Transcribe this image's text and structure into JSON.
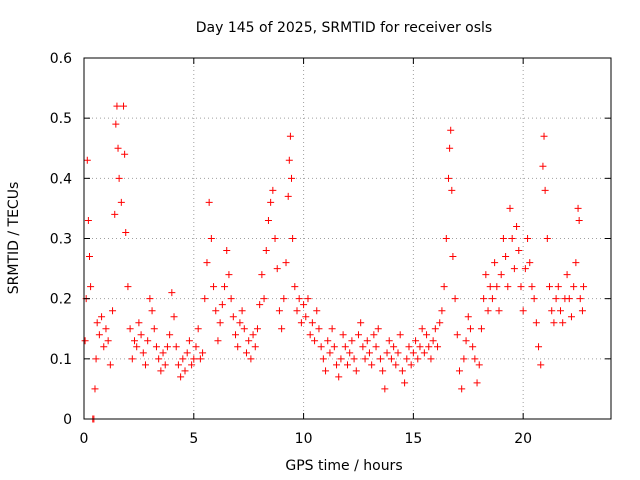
{
  "chart_data": {
    "type": "scatter",
    "title": "Day 145 of 2025, SRMTID for receiver osls",
    "xlabel": "GPS time / hours",
    "ylabel": "SRMTID / TECUs",
    "xlim": [
      0,
      24
    ],
    "ylim": [
      0,
      0.6
    ],
    "xticks": [
      0,
      5,
      10,
      15,
      20
    ],
    "xtick_labels": [
      "0",
      "5",
      "10",
      "15",
      "20"
    ],
    "yticks": [
      0,
      0.1,
      0.2,
      0.3,
      0.4,
      0.5,
      0.6
    ],
    "ytick_labels": [
      "0",
      "0.1",
      "0.2",
      "0.3",
      "0.4",
      "0.5",
      "0.6"
    ],
    "grid": true,
    "marker": "+",
    "color": "#ff0000",
    "series": [
      {
        "name": "osls",
        "points": [
          [
            0.05,
            0.13
          ],
          [
            0.1,
            0.2
          ],
          [
            0.15,
            0.43
          ],
          [
            0.2,
            0.33
          ],
          [
            0.25,
            0.27
          ],
          [
            0.3,
            0.22
          ],
          [
            0.4,
            0.0
          ],
          [
            0.45,
            0.0
          ],
          [
            0.5,
            0.05
          ],
          [
            0.55,
            0.1
          ],
          [
            0.6,
            0.16
          ],
          [
            0.7,
            0.14
          ],
          [
            0.8,
            0.17
          ],
          [
            0.9,
            0.12
          ],
          [
            1.0,
            0.15
          ],
          [
            1.1,
            0.13
          ],
          [
            1.2,
            0.09
          ],
          [
            1.3,
            0.18
          ],
          [
            1.4,
            0.34
          ],
          [
            1.45,
            0.49
          ],
          [
            1.5,
            0.52
          ],
          [
            1.55,
            0.45
          ],
          [
            1.6,
            0.4
          ],
          [
            1.7,
            0.36
          ],
          [
            1.8,
            0.52
          ],
          [
            1.85,
            0.44
          ],
          [
            1.9,
            0.31
          ],
          [
            2.0,
            0.22
          ],
          [
            2.1,
            0.15
          ],
          [
            2.2,
            0.1
          ],
          [
            2.3,
            0.13
          ],
          [
            2.4,
            0.12
          ],
          [
            2.5,
            0.16
          ],
          [
            2.6,
            0.14
          ],
          [
            2.7,
            0.11
          ],
          [
            2.8,
            0.09
          ],
          [
            2.9,
            0.13
          ],
          [
            3.0,
            0.2
          ],
          [
            3.1,
            0.18
          ],
          [
            3.2,
            0.15
          ],
          [
            3.3,
            0.12
          ],
          [
            3.4,
            0.1
          ],
          [
            3.5,
            0.08
          ],
          [
            3.6,
            0.11
          ],
          [
            3.7,
            0.09
          ],
          [
            3.8,
            0.12
          ],
          [
            3.9,
            0.14
          ],
          [
            4.0,
            0.21
          ],
          [
            4.1,
            0.17
          ],
          [
            4.2,
            0.12
          ],
          [
            4.3,
            0.09
          ],
          [
            4.4,
            0.07
          ],
          [
            4.5,
            0.1
          ],
          [
            4.6,
            0.08
          ],
          [
            4.7,
            0.11
          ],
          [
            4.8,
            0.13
          ],
          [
            4.9,
            0.09
          ],
          [
            5.0,
            0.1
          ],
          [
            5.1,
            0.12
          ],
          [
            5.2,
            0.15
          ],
          [
            5.3,
            0.1
          ],
          [
            5.4,
            0.11
          ],
          [
            5.5,
            0.2
          ],
          [
            5.6,
            0.26
          ],
          [
            5.7,
            0.36
          ],
          [
            5.8,
            0.3
          ],
          [
            5.9,
            0.22
          ],
          [
            6.0,
            0.18
          ],
          [
            6.1,
            0.13
          ],
          [
            6.2,
            0.16
          ],
          [
            6.3,
            0.19
          ],
          [
            6.4,
            0.22
          ],
          [
            6.5,
            0.28
          ],
          [
            6.6,
            0.24
          ],
          [
            6.7,
            0.2
          ],
          [
            6.8,
            0.17
          ],
          [
            6.9,
            0.14
          ],
          [
            7.0,
            0.12
          ],
          [
            7.1,
            0.16
          ],
          [
            7.2,
            0.18
          ],
          [
            7.3,
            0.15
          ],
          [
            7.4,
            0.11
          ],
          [
            7.5,
            0.13
          ],
          [
            7.6,
            0.1
          ],
          [
            7.7,
            0.14
          ],
          [
            7.8,
            0.12
          ],
          [
            7.9,
            0.15
          ],
          [
            8.0,
            0.19
          ],
          [
            8.1,
            0.24
          ],
          [
            8.2,
            0.2
          ],
          [
            8.3,
            0.28
          ],
          [
            8.4,
            0.33
          ],
          [
            8.5,
            0.36
          ],
          [
            8.6,
            0.38
          ],
          [
            8.7,
            0.3
          ],
          [
            8.8,
            0.25
          ],
          [
            8.9,
            0.18
          ],
          [
            9.0,
            0.15
          ],
          [
            9.1,
            0.2
          ],
          [
            9.2,
            0.26
          ],
          [
            9.3,
            0.37
          ],
          [
            9.35,
            0.43
          ],
          [
            9.4,
            0.47
          ],
          [
            9.45,
            0.4
          ],
          [
            9.5,
            0.3
          ],
          [
            9.6,
            0.22
          ],
          [
            9.7,
            0.18
          ],
          [
            9.8,
            0.2
          ],
          [
            9.9,
            0.16
          ],
          [
            10.0,
            0.19
          ],
          [
            10.1,
            0.17
          ],
          [
            10.2,
            0.2
          ],
          [
            10.3,
            0.14
          ],
          [
            10.4,
            0.16
          ],
          [
            10.5,
            0.13
          ],
          [
            10.6,
            0.18
          ],
          [
            10.7,
            0.15
          ],
          [
            10.8,
            0.12
          ],
          [
            10.9,
            0.1
          ],
          [
            11.0,
            0.08
          ],
          [
            11.1,
            0.13
          ],
          [
            11.2,
            0.11
          ],
          [
            11.3,
            0.15
          ],
          [
            11.4,
            0.12
          ],
          [
            11.5,
            0.09
          ],
          [
            11.6,
            0.07
          ],
          [
            11.7,
            0.1
          ],
          [
            11.8,
            0.14
          ],
          [
            11.9,
            0.12
          ],
          [
            12.0,
            0.09
          ],
          [
            12.1,
            0.11
          ],
          [
            12.2,
            0.13
          ],
          [
            12.3,
            0.1
          ],
          [
            12.4,
            0.08
          ],
          [
            12.5,
            0.14
          ],
          [
            12.6,
            0.16
          ],
          [
            12.7,
            0.12
          ],
          [
            12.8,
            0.1
          ],
          [
            12.9,
            0.13
          ],
          [
            13.0,
            0.11
          ],
          [
            13.1,
            0.09
          ],
          [
            13.2,
            0.14
          ],
          [
            13.3,
            0.12
          ],
          [
            13.4,
            0.15
          ],
          [
            13.5,
            0.1
          ],
          [
            13.6,
            0.08
          ],
          [
            13.7,
            0.05
          ],
          [
            13.8,
            0.11
          ],
          [
            13.9,
            0.13
          ],
          [
            14.0,
            0.1
          ],
          [
            14.1,
            0.12
          ],
          [
            14.2,
            0.09
          ],
          [
            14.3,
            0.11
          ],
          [
            14.4,
            0.14
          ],
          [
            14.5,
            0.08
          ],
          [
            14.6,
            0.06
          ],
          [
            14.7,
            0.1
          ],
          [
            14.8,
            0.12
          ],
          [
            14.9,
            0.09
          ],
          [
            15.0,
            0.11
          ],
          [
            15.1,
            0.13
          ],
          [
            15.2,
            0.1
          ],
          [
            15.3,
            0.12
          ],
          [
            15.4,
            0.15
          ],
          [
            15.5,
            0.11
          ],
          [
            15.6,
            0.14
          ],
          [
            15.7,
            0.12
          ],
          [
            15.8,
            0.1
          ],
          [
            15.9,
            0.13
          ],
          [
            16.0,
            0.15
          ],
          [
            16.1,
            0.12
          ],
          [
            16.2,
            0.16
          ],
          [
            16.3,
            0.18
          ],
          [
            16.4,
            0.22
          ],
          [
            16.5,
            0.3
          ],
          [
            16.6,
            0.4
          ],
          [
            16.65,
            0.45
          ],
          [
            16.7,
            0.48
          ],
          [
            16.75,
            0.38
          ],
          [
            16.8,
            0.27
          ],
          [
            16.9,
            0.2
          ],
          [
            17.0,
            0.14
          ],
          [
            17.1,
            0.08
          ],
          [
            17.2,
            0.05
          ],
          [
            17.3,
            0.1
          ],
          [
            17.4,
            0.13
          ],
          [
            17.5,
            0.17
          ],
          [
            17.6,
            0.15
          ],
          [
            17.7,
            0.12
          ],
          [
            17.8,
            0.1
          ],
          [
            17.9,
            0.06
          ],
          [
            18.0,
            0.09
          ],
          [
            18.1,
            0.15
          ],
          [
            18.2,
            0.2
          ],
          [
            18.3,
            0.24
          ],
          [
            18.4,
            0.18
          ],
          [
            18.5,
            0.22
          ],
          [
            18.6,
            0.2
          ],
          [
            18.7,
            0.26
          ],
          [
            18.8,
            0.22
          ],
          [
            18.9,
            0.18
          ],
          [
            19.0,
            0.24
          ],
          [
            19.1,
            0.3
          ],
          [
            19.2,
            0.27
          ],
          [
            19.3,
            0.22
          ],
          [
            19.4,
            0.35
          ],
          [
            19.5,
            0.3
          ],
          [
            19.6,
            0.25
          ],
          [
            19.7,
            0.32
          ],
          [
            19.8,
            0.28
          ],
          [
            19.9,
            0.22
          ],
          [
            20.0,
            0.18
          ],
          [
            20.1,
            0.25
          ],
          [
            20.2,
            0.3
          ],
          [
            20.3,
            0.26
          ],
          [
            20.4,
            0.22
          ],
          [
            20.5,
            0.2
          ],
          [
            20.6,
            0.16
          ],
          [
            20.7,
            0.12
          ],
          [
            20.8,
            0.09
          ],
          [
            20.9,
            0.42
          ],
          [
            20.95,
            0.47
          ],
          [
            21.0,
            0.38
          ],
          [
            21.1,
            0.3
          ],
          [
            21.2,
            0.22
          ],
          [
            21.3,
            0.18
          ],
          [
            21.4,
            0.16
          ],
          [
            21.5,
            0.2
          ],
          [
            21.6,
            0.22
          ],
          [
            21.7,
            0.18
          ],
          [
            21.8,
            0.16
          ],
          [
            21.9,
            0.2
          ],
          [
            22.0,
            0.24
          ],
          [
            22.1,
            0.2
          ],
          [
            22.2,
            0.17
          ],
          [
            22.3,
            0.22
          ],
          [
            22.4,
            0.26
          ],
          [
            22.5,
            0.35
          ],
          [
            22.55,
            0.33
          ],
          [
            22.6,
            0.2
          ],
          [
            22.7,
            0.18
          ],
          [
            22.75,
            0.22
          ]
        ]
      }
    ]
  }
}
